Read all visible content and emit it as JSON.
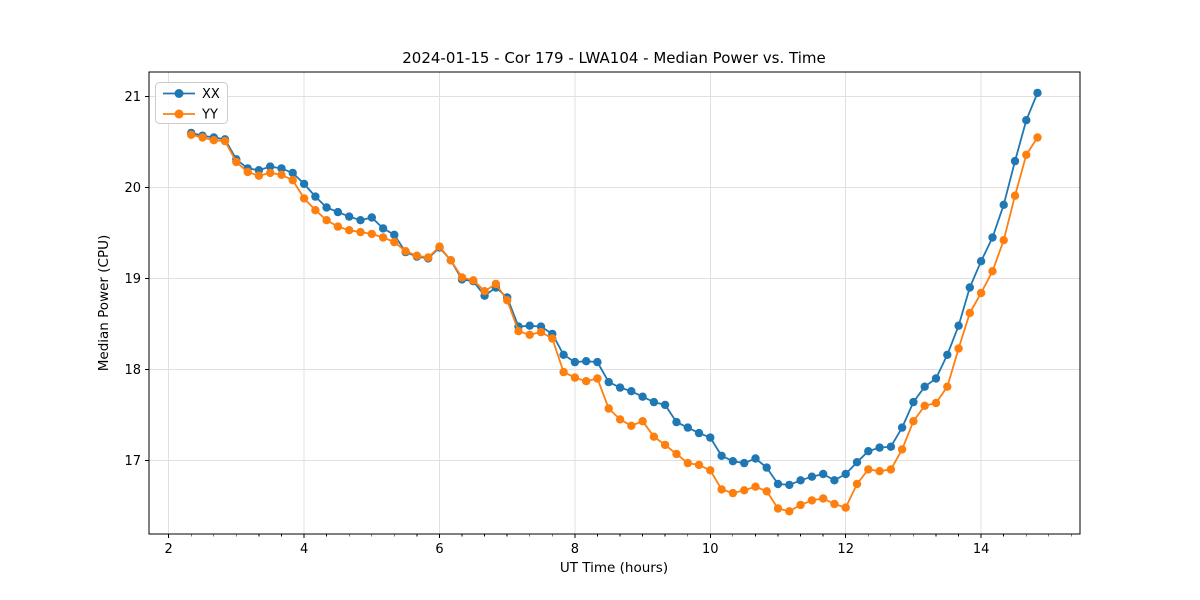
{
  "figure": {
    "background": "#ffffff"
  },
  "legend": {
    "position": "upper-left",
    "entries": [
      {
        "label": "XX",
        "color": "#1f77b4"
      },
      {
        "label": "YY",
        "color": "#ff7f0e"
      }
    ]
  },
  "chart_data": {
    "type": "line",
    "title": "2024-01-15 - Cor 179 - LWA104 - Median Power vs. Time",
    "xlabel": "UT Time (hours)",
    "ylabel": "Median Power (CPU)",
    "grid": true,
    "marker": "o",
    "legend_position": "upper-left",
    "xlim": [
      1.71,
      15.46
    ],
    "ylim": [
      16.19,
      21.27
    ],
    "xticks": [
      2,
      4,
      6,
      8,
      10,
      12,
      14
    ],
    "yticks": [
      17,
      18,
      19,
      20,
      21
    ],
    "x_minor_tick_step": 0.3333,
    "x": [
      2.333,
      2.5,
      2.667,
      2.833,
      3.0,
      3.167,
      3.333,
      3.5,
      3.667,
      3.833,
      4.0,
      4.167,
      4.333,
      4.5,
      4.667,
      4.833,
      5.0,
      5.167,
      5.333,
      5.5,
      5.667,
      5.833,
      6.0,
      6.167,
      6.333,
      6.5,
      6.667,
      6.833,
      7.0,
      7.167,
      7.333,
      7.5,
      7.667,
      7.833,
      8.0,
      8.167,
      8.333,
      8.5,
      8.667,
      8.833,
      9.0,
      9.167,
      9.333,
      9.5,
      9.667,
      9.833,
      10.0,
      10.167,
      10.333,
      10.5,
      10.667,
      10.833,
      11.0,
      11.167,
      11.333,
      11.5,
      11.667,
      11.833,
      12.0,
      12.167,
      12.333,
      12.5,
      12.667,
      12.833,
      13.0,
      13.167,
      13.333,
      13.5,
      13.667,
      13.833,
      14.0,
      14.167,
      14.333,
      14.5,
      14.667,
      14.833
    ],
    "series": [
      {
        "name": "XX",
        "color": "#1f77b4",
        "values": [
          20.6,
          20.57,
          20.55,
          20.53,
          20.31,
          20.21,
          20.19,
          20.23,
          20.21,
          20.16,
          20.04,
          19.9,
          19.78,
          19.73,
          19.68,
          19.64,
          19.67,
          19.55,
          19.48,
          19.29,
          19.24,
          19.22,
          19.34,
          19.2,
          18.99,
          18.97,
          18.81,
          18.9,
          18.79,
          18.47,
          18.48,
          18.47,
          18.39,
          18.16,
          18.08,
          18.09,
          18.08,
          17.86,
          17.8,
          17.76,
          17.7,
          17.64,
          17.61,
          17.42,
          17.36,
          17.3,
          17.25,
          17.05,
          16.99,
          16.97,
          17.02,
          16.92,
          16.74,
          16.73,
          16.78,
          16.82,
          16.85,
          16.78,
          16.85,
          16.98,
          17.1,
          17.14,
          17.15,
          17.36,
          17.64,
          17.81,
          17.9,
          18.16,
          18.48,
          18.9,
          19.19,
          19.45,
          19.81,
          20.29,
          20.74,
          21.04
        ]
      },
      {
        "name": "YY",
        "color": "#ff7f0e",
        "values": [
          20.58,
          20.55,
          20.52,
          20.51,
          20.28,
          20.17,
          20.13,
          20.16,
          20.14,
          20.08,
          19.88,
          19.75,
          19.64,
          19.57,
          19.53,
          19.51,
          19.49,
          19.45,
          19.4,
          19.3,
          19.25,
          19.23,
          19.35,
          19.2,
          19.01,
          18.98,
          18.86,
          18.94,
          18.76,
          18.42,
          18.38,
          18.41,
          18.34,
          17.97,
          17.91,
          17.87,
          17.9,
          17.57,
          17.45,
          17.38,
          17.43,
          17.26,
          17.17,
          17.07,
          16.97,
          16.95,
          16.89,
          16.68,
          16.64,
          16.67,
          16.71,
          16.66,
          16.47,
          16.44,
          16.51,
          16.56,
          16.58,
          16.52,
          16.48,
          16.74,
          16.9,
          16.88,
          16.9,
          17.12,
          17.43,
          17.6,
          17.63,
          17.81,
          18.23,
          18.62,
          18.84,
          19.08,
          19.42,
          19.91,
          20.36,
          20.55
        ]
      }
    ],
    "colors": {
      "grid": "#e0e0e0",
      "spine": "#000000",
      "background": "#ffffff"
    }
  }
}
